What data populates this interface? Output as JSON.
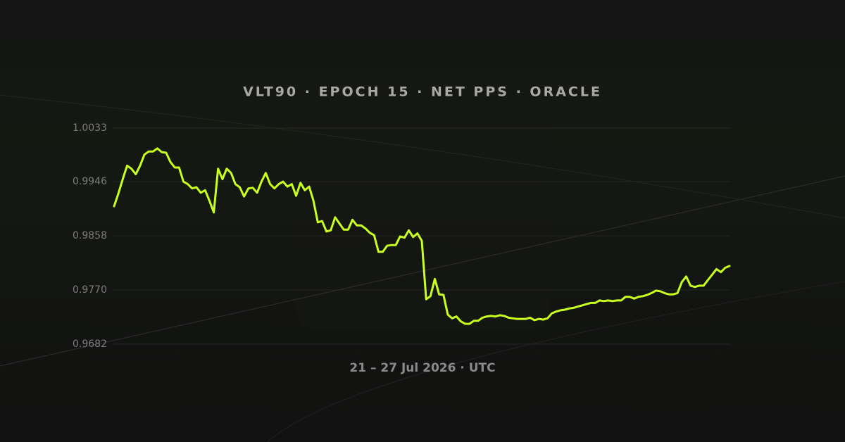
{
  "chart_data": {
    "type": "line",
    "title": "VLT90 · EPOCH 15 · NET PPS · ORACLE",
    "x_label": "21 – 27 Jul 2026 · UTC",
    "ylim": [
      0.9682,
      1.0033
    ],
    "yticks": [
      1.0033,
      0.9946,
      0.9858,
      {
        "value": 0.977,
        "label": "0.9770"
      },
      0.9682
    ],
    "grid": true,
    "color": "#c8ff1e",
    "values": [
      0.9906,
      0.9927,
      0.995,
      0.9972,
      0.9967,
      0.9958,
      0.9972,
      0.999,
      0.9995,
      0.9995,
      1.0,
      0.9994,
      0.9993,
      0.9978,
      0.9969,
      0.9969,
      0.9946,
      0.9942,
      0.9935,
      0.9937,
      0.9928,
      0.9932,
      0.9915,
      0.9896,
      0.9967,
      0.995,
      0.9967,
      0.996,
      0.9942,
      0.9937,
      0.9922,
      0.9935,
      0.9936,
      0.9928,
      0.9946,
      0.996,
      0.9942,
      0.9935,
      0.9942,
      0.9946,
      0.9938,
      0.9942,
      0.9923,
      0.9944,
      0.9932,
      0.9938,
      0.9915,
      0.988,
      0.9882,
      0.9865,
      0.9867,
      0.9888,
      0.9878,
      0.9868,
      0.9868,
      0.9884,
      0.9875,
      0.9875,
      0.987,
      0.9863,
      0.9859,
      0.9832,
      0.9832,
      0.9842,
      0.9843,
      0.9843,
      0.9857,
      0.9855,
      0.9867,
      0.9856,
      0.9862,
      0.985,
      0.9755,
      0.976,
      0.9788,
      0.9763,
      0.9762,
      0.973,
      0.9724,
      0.9727,
      0.9719,
      0.9715,
      0.9715,
      0.972,
      0.972,
      0.9725,
      0.9727,
      0.9728,
      0.9727,
      0.9729,
      0.9728,
      0.9725,
      0.9724,
      0.9723,
      0.9723,
      0.9723,
      0.9725,
      0.9721,
      0.9723,
      0.9722,
      0.9724,
      0.9732,
      0.9735,
      0.9737,
      0.9738,
      0.974,
      0.9741,
      0.9743,
      0.9745,
      0.9747,
      0.9749,
      0.9749,
      0.9753,
      0.9752,
      0.9753,
      0.9752,
      0.9753,
      0.9753,
      0.9759,
      0.9759,
      0.9756,
      0.9759,
      0.976,
      0.9762,
      0.9765,
      0.9769,
      0.9768,
      0.9765,
      0.9763,
      0.9763,
      0.9765,
      0.9783,
      0.9792,
      0.9777,
      0.9775,
      0.9777,
      0.9777,
      0.9786,
      0.9795,
      0.9804,
      0.9799,
      0.9806,
      0.9809
    ]
  }
}
